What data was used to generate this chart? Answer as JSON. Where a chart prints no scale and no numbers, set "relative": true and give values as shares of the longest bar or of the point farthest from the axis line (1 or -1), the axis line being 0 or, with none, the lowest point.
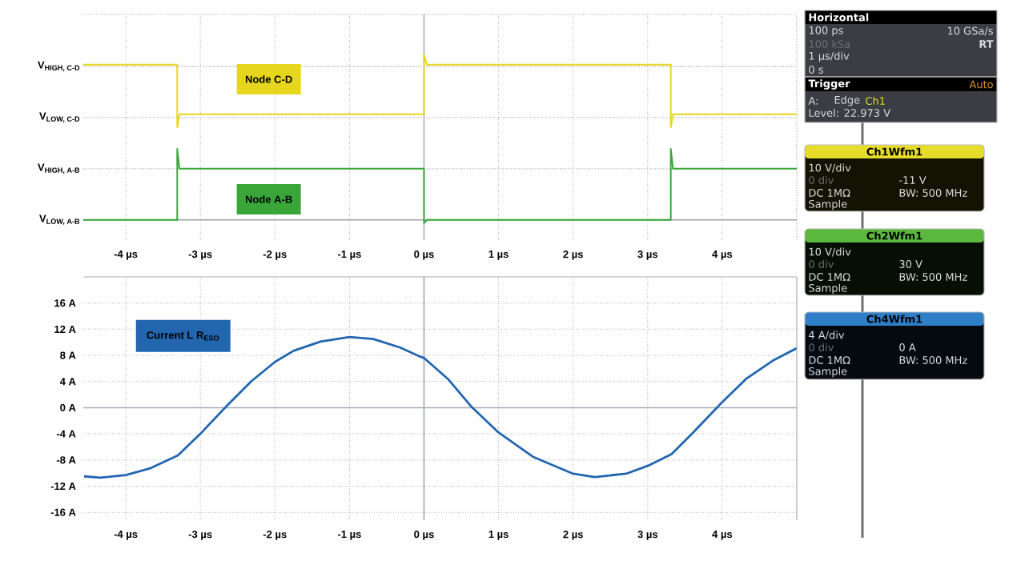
{
  "chart_data": [
    {
      "type": "line",
      "relative": true,
      "x": [
        -4.57,
        -3.31,
        -3.31,
        -3.28,
        0,
        0,
        0.04,
        3.31,
        3.31,
        3.34,
        5
      ],
      "series": [
        {
          "name": "Node C-D",
          "color": "#e6d61e",
          "values": [
            0.94,
            0.94,
            0.56,
            0.64,
            0.64,
            1,
            0.94,
            0.94,
            0.56,
            0.64,
            0.64
          ]
        },
        {
          "name": "Node A-B",
          "color": "#3aa63a",
          "values": [
            0,
            0,
            0.43,
            0.31,
            0.31,
            -0.02,
            0,
            0,
            0.43,
            0.31,
            0.31
          ]
        }
      ],
      "xlim": [
        -4.57,
        5
      ],
      "xticks": [
        {
          "value": -4,
          "label": "-4 µs"
        },
        {
          "value": -3,
          "label": "-3 µs"
        },
        {
          "value": -2,
          "label": "-2 µs"
        },
        {
          "value": -1,
          "label": "-1 µs"
        },
        {
          "value": 0,
          "label": "0 µs"
        },
        {
          "value": 1,
          "label": "1 µs"
        },
        {
          "value": 2,
          "label": "2 µs"
        },
        {
          "value": 3,
          "label": "3 µs"
        },
        {
          "value": 4,
          "label": "4 µs"
        }
      ],
      "grid": "x",
      "ref_lines": [
        {
          "axis": "x",
          "value": 0,
          "color": "#9aa2aa"
        },
        {
          "axis": "y",
          "value": 0,
          "label": "V$_{LOW, A-B}$",
          "color": "#9aa2aa"
        },
        {
          "axis": "y",
          "value": 0.31,
          "label": "V$_{HIGH, A-B}$",
          "color": "#b4b4b4",
          "line_style": "dotted"
        },
        {
          "axis": "y",
          "value": 0.62,
          "label": "V$_{LOW, C-D}$",
          "color": "#b4b4b4",
          "line_style": "dotted"
        },
        {
          "axis": "y",
          "value": 0.93,
          "label": "V$_{HIGH, C-D}$",
          "color": "#b4b4b4",
          "line_style": "dotted"
        }
      ]
    },
    {
      "type": "line",
      "x": [
        -4.56,
        -4.34,
        -4.0,
        -3.68,
        -3.3,
        -3.0,
        -2.66,
        -2.32,
        -2.0,
        -1.75,
        -1.39,
        -1.0,
        -0.68,
        -0.32,
        -0.05,
        0,
        0.32,
        0.64,
        1.0,
        1.46,
        2.0,
        2.29,
        2.71,
        3.0,
        3.32,
        3.61,
        3.97,
        4.32,
        4.68,
        5.0
      ],
      "series": [
        {
          "name": "Current L R$_{ESO}$",
          "color": "#2366b0",
          "values": [
            -10.5,
            -10.7,
            -10.3,
            -9.3,
            -7.3,
            -4.0,
            0.1,
            4.0,
            7.0,
            8.7,
            10.1,
            10.8,
            10.5,
            9.2,
            7.8,
            7.6,
            4.4,
            0.1,
            -3.8,
            -7.5,
            -10.1,
            -10.6,
            -10.1,
            -8.9,
            -7.1,
            -3.8,
            0.5,
            4.4,
            7.2,
            9.1
          ]
        }
      ],
      "xlim": [
        -4.57,
        5
      ],
      "xticks": [
        {
          "value": -4,
          "label": "-4 µs"
        },
        {
          "value": -3,
          "label": "-3 µs"
        },
        {
          "value": -2,
          "label": "-2 µs"
        },
        {
          "value": -1,
          "label": "-1 µs"
        },
        {
          "value": 0,
          "label": "0 µs"
        },
        {
          "value": 1,
          "label": "1 µs"
        },
        {
          "value": 2,
          "label": "2 µs"
        },
        {
          "value": 3,
          "label": "3 µs"
        },
        {
          "value": 4,
          "label": "4 µs"
        }
      ],
      "ylim": [
        -17.2,
        20
      ],
      "yticks": [
        {
          "value": -16,
          "label": "-16 A"
        },
        {
          "value": -12,
          "label": "-12 A"
        },
        {
          "value": -8,
          "label": "-8 A"
        },
        {
          "value": -4,
          "label": "-4 A"
        },
        {
          "value": 0,
          "label": "0 A"
        },
        {
          "value": 4,
          "label": "4 A"
        },
        {
          "value": 8,
          "label": "8 A"
        },
        {
          "value": 12,
          "label": "12 A"
        },
        {
          "value": 16,
          "label": "16 A"
        }
      ],
      "grid": true,
      "ref_lines": [
        {
          "axis": "x",
          "value": 0,
          "color": "#939ba4"
        },
        {
          "axis": "y",
          "value": 0,
          "color": "#a3abb3"
        }
      ]
    },
    {
      "type": "other",
      "title": "Horizontal",
      "annotations": [
        "100 ps",
        "10 GSa/s",
        "100 kSa",
        "RT",
        "1 µs/div",
        "0 s"
      ]
    },
    {
      "type": "other",
      "title": "Trigger",
      "annotations": [
        "Auto",
        "A:",
        "Edge",
        "Ch1",
        "Level: 22.973 V"
      ]
    },
    {
      "type": "other",
      "title": "Ch1Wfm1",
      "color": "#e8dc2a",
      "annotations": [
        "10 V/div",
        "0 div",
        "-11 V",
        "DC 1MΩ",
        "BW: 500 MHz",
        "Sample"
      ]
    },
    {
      "type": "other",
      "title": "Ch2Wfm1",
      "color": "#5cb83c",
      "annotations": [
        "10 V/div",
        "0 div",
        "30 V",
        "DC 1MΩ",
        "BW: 500 MHz",
        "Sample"
      ]
    },
    {
      "type": "other",
      "title": "Ch4Wfm1",
      "color": "#2f7fc8",
      "annotations": [
        "4 A/div",
        "0 div",
        "0 A",
        "DC 1MΩ",
        "BW: 500 MHz",
        "Sample"
      ]
    }
  ]
}
